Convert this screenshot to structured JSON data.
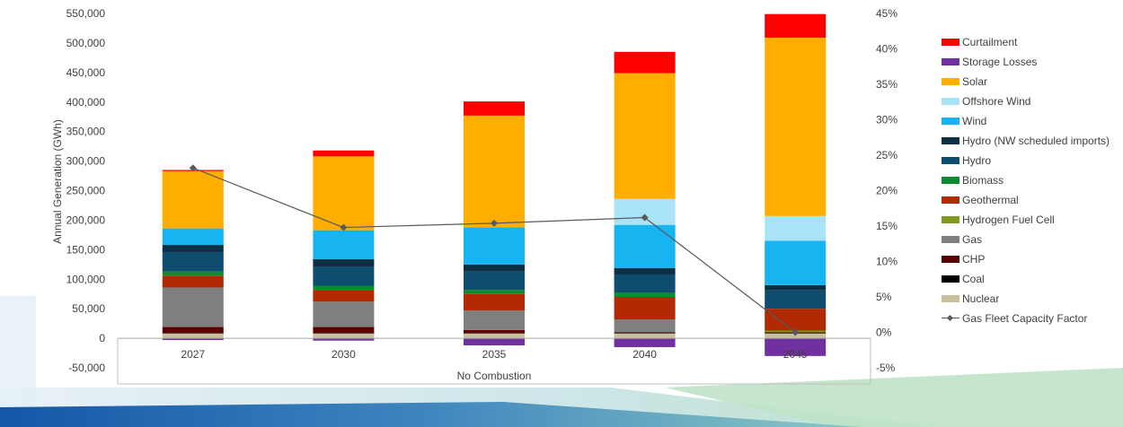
{
  "chart_data": {
    "type": "bar",
    "stacked": true,
    "title": "",
    "xlabel": "No Combustion",
    "ylabel": "Annual Generation (GWh)",
    "categories": [
      "2027",
      "2030",
      "2035",
      "2040",
      "2045"
    ],
    "ylim": [
      -50000,
      550000
    ],
    "y_ticks": [
      "550,000",
      "500,000",
      "450,000",
      "400,000",
      "350,000",
      "300,000",
      "250,000",
      "200,000",
      "150,000",
      "100,000",
      "50,000",
      "0",
      "-50,000"
    ],
    "y2lim": [
      -5,
      45
    ],
    "y2_ticks": [
      "45%",
      "40%",
      "35%",
      "30%",
      "25%",
      "20%",
      "15%",
      "10%",
      "5%",
      "0%",
      "-5%"
    ],
    "grid": false,
    "legend_position": "right",
    "series": [
      {
        "name": "Nuclear",
        "color": "#C9BF9B",
        "values": [
          8000,
          8000,
          8000,
          8000,
          8000
        ]
      },
      {
        "name": "Coal",
        "color": "#000000",
        "values": [
          1000,
          1000,
          1000,
          1000,
          1000
        ]
      },
      {
        "name": "CHP",
        "color": "#5A0000",
        "values": [
          10000,
          10000,
          5000,
          1000,
          1000
        ]
      },
      {
        "name": "Gas",
        "color": "#7F7F7F",
        "values": [
          67000,
          43000,
          33000,
          22000,
          0
        ]
      },
      {
        "name": "Hydrogen Fuel Cell",
        "color": "#7F9A1A",
        "values": [
          0,
          0,
          0,
          0,
          3000
        ]
      },
      {
        "name": "Geothermal",
        "color": "#B22A04",
        "values": [
          20000,
          20000,
          28000,
          38000,
          37000
        ]
      },
      {
        "name": "Biomass",
        "color": "#0E8A2E",
        "values": [
          7000,
          7000,
          7000,
          7000,
          0
        ]
      },
      {
        "name": "Hydro",
        "color": "#0E4D6E",
        "values": [
          33000,
          32000,
          31000,
          31000,
          31000
        ]
      },
      {
        "name": "Hydro (NW scheduled imports)",
        "color": "#0B2F45",
        "values": [
          12000,
          13000,
          12000,
          11000,
          9000
        ]
      },
      {
        "name": "Wind",
        "color": "#17B4F2",
        "values": [
          28000,
          49000,
          63000,
          73000,
          75000
        ]
      },
      {
        "name": "Offshore Wind",
        "color": "#A9E3F7",
        "values": [
          0,
          0,
          0,
          44000,
          42000
        ]
      },
      {
        "name": "Solar",
        "color": "#FFAE00",
        "values": [
          97000,
          125000,
          189000,
          213000,
          302000
        ]
      },
      {
        "name": "Storage Losses",
        "color": "#7030A0",
        "values": [
          -3000,
          -4000,
          -12000,
          -15000,
          -30000
        ]
      },
      {
        "name": "Curtailment",
        "color": "#FF0000",
        "values": [
          2000,
          10000,
          24000,
          36000,
          40000
        ]
      }
    ],
    "line_series": {
      "name": "Gas Fleet Capacity Factor",
      "color": "#595959",
      "axis": "secondary",
      "values": [
        23.2,
        14.8,
        15.4,
        16.2,
        0
      ]
    }
  },
  "legend_order": [
    "Curtailment",
    "Storage Losses",
    "Solar",
    "Offshore Wind",
    "Wind",
    "Hydro (NW scheduled imports)",
    "Hydro",
    "Biomass",
    "Geothermal",
    "Hydrogen Fuel Cell",
    "Gas",
    "CHP",
    "Coal",
    "Nuclear",
    "Gas Fleet Capacity Factor"
  ]
}
